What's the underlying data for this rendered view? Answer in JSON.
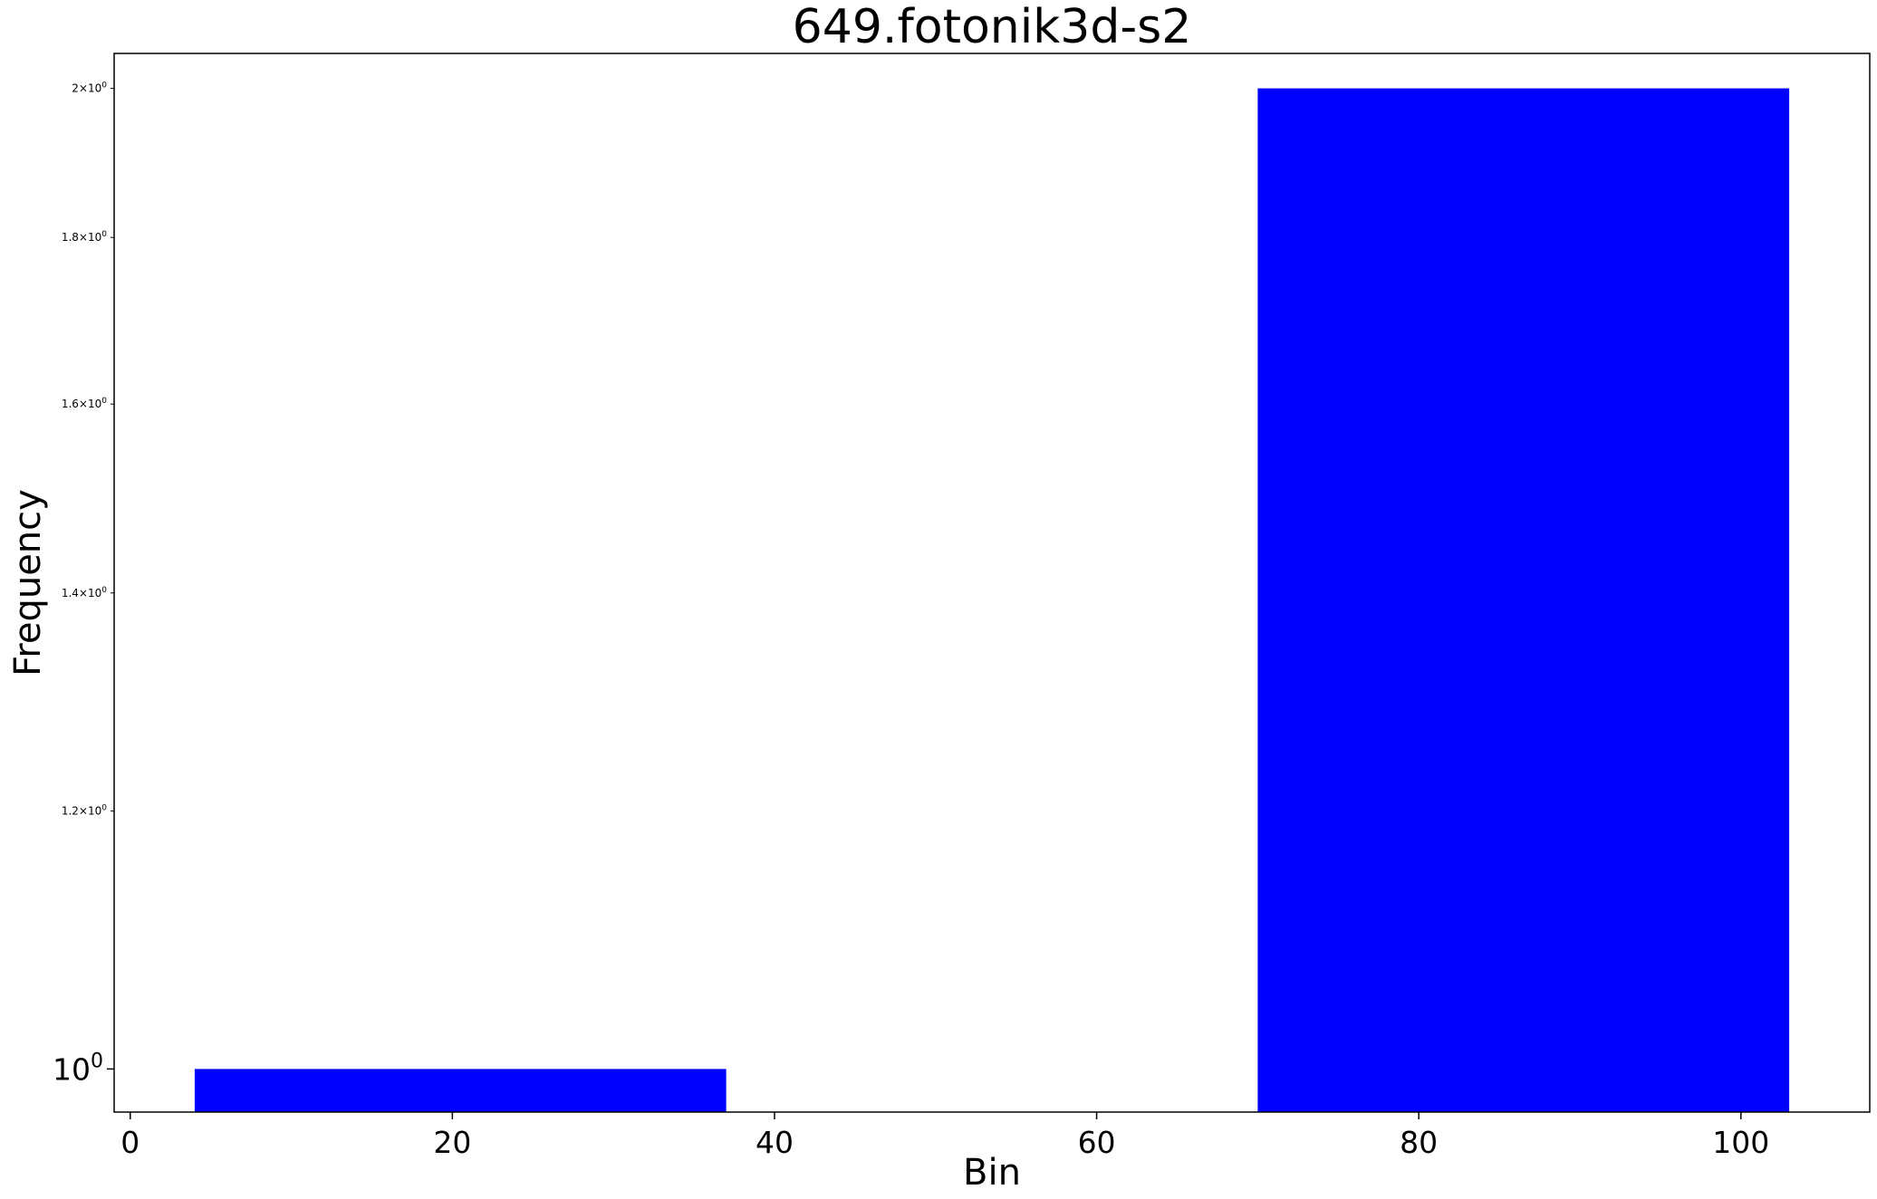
{
  "chart_data": {
    "type": "bar",
    "title": "649.fotonik3d-s2",
    "xlabel": "Bin",
    "ylabel": "Frequency",
    "yscale": "log",
    "bar_color": "#0000ff",
    "bars": [
      {
        "x_start": 4,
        "x_end": 37,
        "value": 1
      },
      {
        "x_start": 70,
        "x_end": 103,
        "value": 2
      }
    ],
    "xlim": [
      -1,
      108
    ],
    "ylim": [
      0.97,
      2.05
    ],
    "x_ticks": [
      {
        "value": 0,
        "label": "0"
      },
      {
        "value": 20,
        "label": "20"
      },
      {
        "value": 40,
        "label": "40"
      },
      {
        "value": 60,
        "label": "60"
      },
      {
        "value": 80,
        "label": "80"
      },
      {
        "value": 100,
        "label": "100"
      }
    ],
    "y_ticks": [
      {
        "value": 1.0,
        "mantissa": "",
        "exp": "0",
        "major": true
      },
      {
        "value": 1.2,
        "mantissa": "1.2",
        "exp": "0",
        "major": false
      },
      {
        "value": 1.4,
        "mantissa": "1.4",
        "exp": "0",
        "major": false
      },
      {
        "value": 1.6,
        "mantissa": "1.6",
        "exp": "0",
        "major": false
      },
      {
        "value": 1.8,
        "mantissa": "1.8",
        "exp": "0",
        "major": false
      },
      {
        "value": 2.0,
        "mantissa": "2",
        "exp": "0",
        "major": false
      }
    ],
    "grid": false,
    "legend": false
  }
}
